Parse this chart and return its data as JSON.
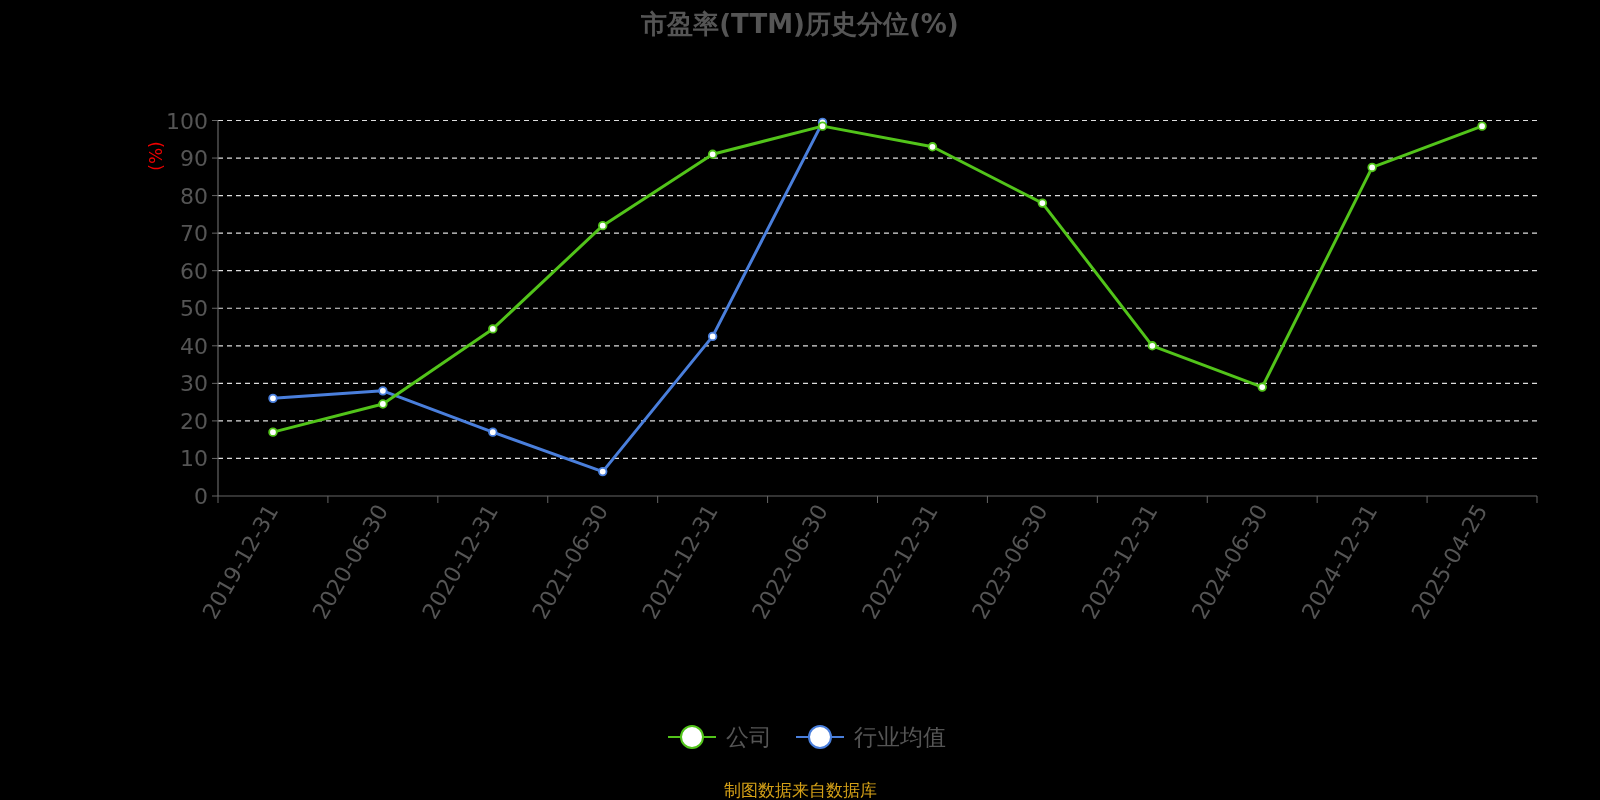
{
  "chart_data": {
    "type": "line",
    "title": "市盈率(TTM)历史分位(%)",
    "ylabel": "(%)",
    "categories": [
      "2019-12-31",
      "2020-06-30",
      "2020-12-31",
      "2021-06-30",
      "2021-12-31",
      "2022-06-30",
      "2022-12-31",
      "2023-06-30",
      "2023-12-31",
      "2024-06-30",
      "2024-12-31",
      "2025-04-25"
    ],
    "series": [
      {
        "name": "公司",
        "color": "#52c41a",
        "values": [
          17,
          24.5,
          44.5,
          72,
          91,
          98.5,
          93,
          78,
          40,
          29,
          87.5,
          98.5
        ]
      },
      {
        "name": "行业均值",
        "color": "#4a7fdc",
        "values": [
          26,
          28,
          17,
          6.5,
          42.5,
          99.5,
          null,
          null,
          null,
          null,
          null,
          null
        ]
      }
    ],
    "ylim": [
      0,
      100
    ],
    "yticks": [
      0,
      10,
      20,
      30,
      40,
      50,
      60,
      70,
      80,
      90,
      100
    ],
    "grid": "y",
    "legend": "bottom",
    "marker": "circle",
    "line_style": "solid",
    "annotations": [
      "制图数据来自数据库"
    ]
  }
}
